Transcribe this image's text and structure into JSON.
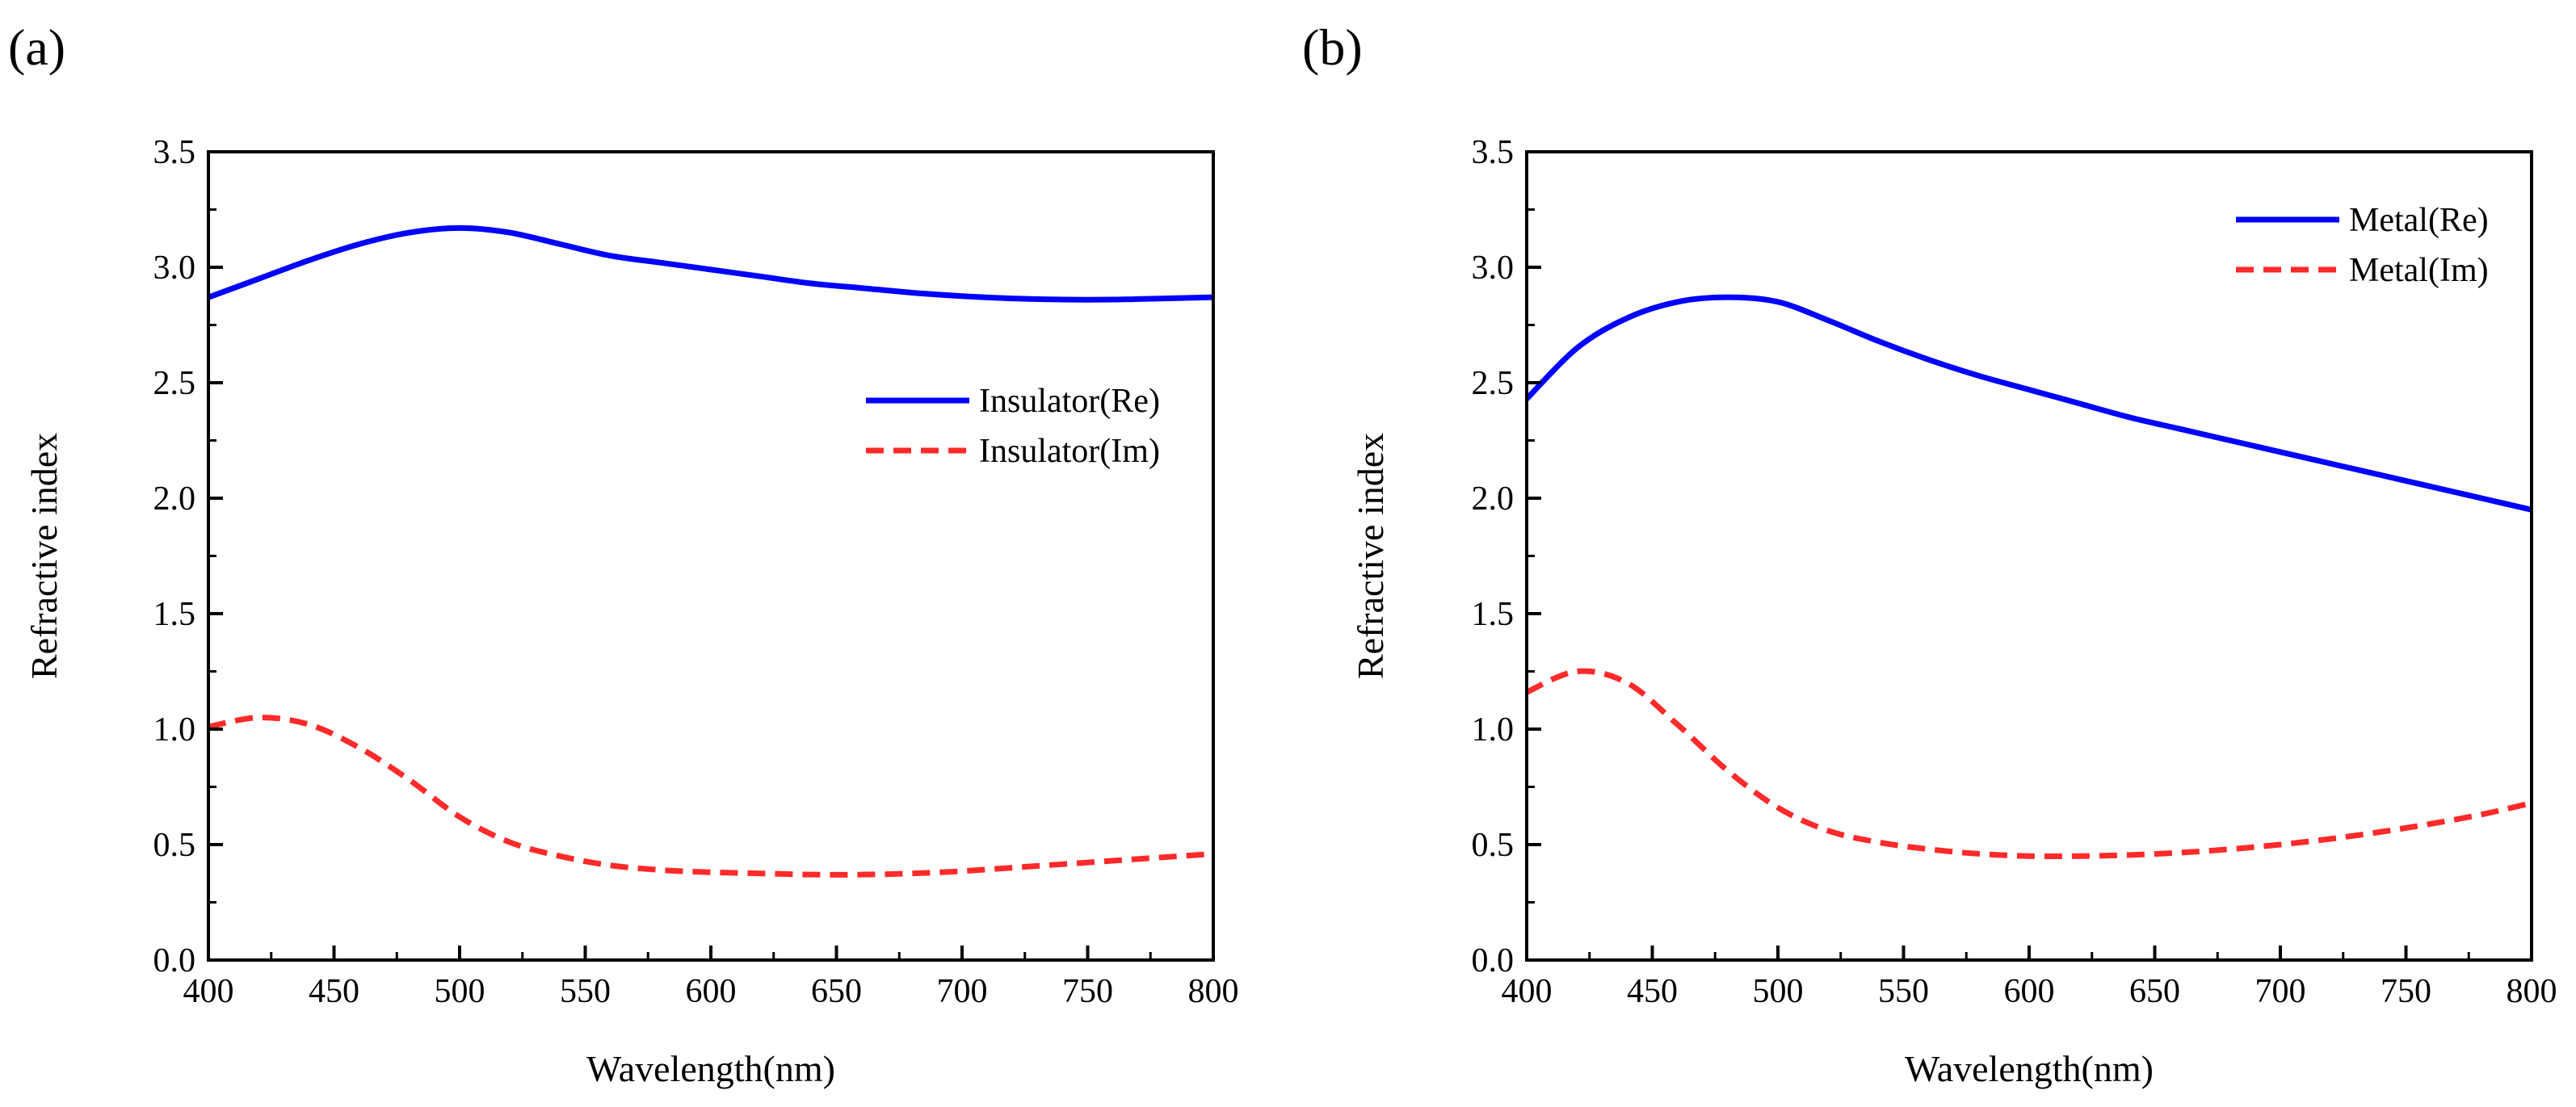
{
  "chart_data": [
    {
      "type": "line",
      "panel_label": "(a)",
      "title": "",
      "xlabel": "Wavelength(nm)",
      "ylabel": "Refractive index",
      "xlim": [
        400,
        800
      ],
      "ylim": [
        0.0,
        3.5
      ],
      "xticks": [
        400,
        450,
        500,
        550,
        600,
        650,
        700,
        750,
        800
      ],
      "xtick_labels": [
        "400",
        "450",
        "500",
        "550",
        "600",
        "650",
        "700",
        "750",
        "800"
      ],
      "yticks": [
        0.0,
        0.5,
        1.0,
        1.5,
        2.0,
        2.5,
        3.0,
        3.5
      ],
      "ytick_labels": [
        "0.0",
        "0.5",
        "1.0",
        "1.5",
        "2.0",
        "2.5",
        "3.0",
        "3.5"
      ],
      "grid": false,
      "legend_position": "center-right",
      "x": [
        400,
        420,
        440,
        460,
        480,
        500,
        520,
        540,
        560,
        580,
        600,
        620,
        640,
        660,
        680,
        700,
        720,
        740,
        760,
        780,
        800
      ],
      "series": [
        {
          "name": "Insulator(Re)",
          "color": "#0000ff",
          "style": "solid",
          "values": [
            2.87,
            2.95,
            3.03,
            3.1,
            3.15,
            3.17,
            3.15,
            3.1,
            3.05,
            3.02,
            2.99,
            2.96,
            2.93,
            2.91,
            2.89,
            2.875,
            2.865,
            2.86,
            2.86,
            2.865,
            2.87
          ]
        },
        {
          "name": "Insulator(Im)",
          "color": "#ff2a2a",
          "style": "dashed",
          "values": [
            1.01,
            1.05,
            1.02,
            0.92,
            0.78,
            0.62,
            0.51,
            0.45,
            0.41,
            0.39,
            0.38,
            0.375,
            0.37,
            0.37,
            0.375,
            0.385,
            0.4,
            0.415,
            0.43,
            0.445,
            0.46
          ]
        }
      ]
    },
    {
      "type": "line",
      "panel_label": "(b)",
      "title": "",
      "xlabel": "Wavelength(nm)",
      "ylabel": "Refractive index",
      "xlim": [
        400,
        800
      ],
      "ylim": [
        0.0,
        3.5
      ],
      "xticks": [
        400,
        450,
        500,
        550,
        600,
        650,
        700,
        750,
        800
      ],
      "xtick_labels": [
        "400",
        "450",
        "500",
        "550",
        "600",
        "650",
        "700",
        "750",
        "800"
      ],
      "yticks": [
        0.0,
        0.5,
        1.0,
        1.5,
        2.0,
        2.5,
        3.0,
        3.5
      ],
      "ytick_labels": [
        "0.0",
        "0.5",
        "1.0",
        "1.5",
        "2.0",
        "2.5",
        "3.0",
        "3.5"
      ],
      "grid": false,
      "legend_position": "top-right",
      "x": [
        400,
        420,
        440,
        460,
        480,
        500,
        520,
        540,
        560,
        580,
        600,
        620,
        640,
        660,
        680,
        700,
        720,
        740,
        760,
        780,
        800
      ],
      "series": [
        {
          "name": "Metal(Re)",
          "color": "#0000ff",
          "style": "solid",
          "values": [
            2.43,
            2.65,
            2.78,
            2.85,
            2.87,
            2.85,
            2.77,
            2.68,
            2.6,
            2.53,
            2.47,
            2.41,
            2.35,
            2.3,
            2.25,
            2.2,
            2.15,
            2.1,
            2.05,
            2.0,
            1.95
          ]
        },
        {
          "name": "Metal(Im)",
          "color": "#ff2a2a",
          "style": "dashed",
          "values": [
            1.16,
            1.25,
            1.2,
            1.02,
            0.82,
            0.66,
            0.56,
            0.51,
            0.48,
            0.46,
            0.45,
            0.45,
            0.455,
            0.465,
            0.48,
            0.5,
            0.525,
            0.555,
            0.59,
            0.63,
            0.68
          ]
        }
      ]
    }
  ]
}
